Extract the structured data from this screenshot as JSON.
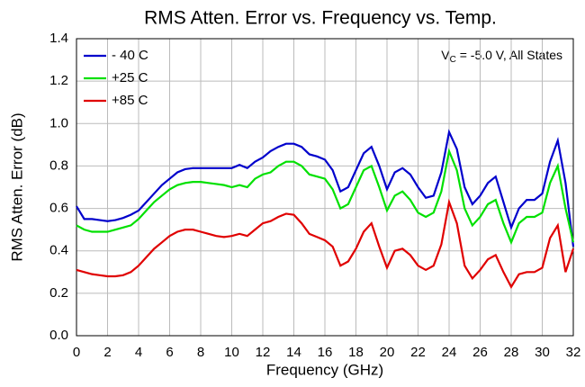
{
  "chart_data": {
    "type": "line",
    "title": "RMS Atten. Error vs. Frequency vs. Temp.",
    "xlabel": "Frequency (GHz)",
    "ylabel": "RMS Atten. Error (dB)",
    "annotation": {
      "text": "V",
      "subscript": "C",
      "rest": " = -5.0 V, All States"
    },
    "x": [
      0,
      0.5,
      1,
      1.5,
      2,
      2.5,
      3,
      3.5,
      4,
      4.5,
      5,
      5.5,
      6,
      6.5,
      7,
      7.5,
      8,
      8.5,
      9,
      9.5,
      10,
      10.5,
      11,
      11.5,
      12,
      12.5,
      13,
      13.5,
      14,
      14.5,
      15,
      15.5,
      16,
      16.5,
      17,
      17.5,
      18,
      18.5,
      19,
      19.5,
      20,
      20.5,
      21,
      21.5,
      22,
      22.5,
      23,
      23.5,
      24,
      24.5,
      25,
      25.5,
      26,
      26.5,
      27,
      27.5,
      28,
      28.5,
      29,
      29.5,
      30,
      30.5,
      31,
      31.5,
      32
    ],
    "series": [
      {
        "name": "- 40 C",
        "color": "#0000cc",
        "values": [
          0.61,
          0.55,
          0.55,
          0.545,
          0.54,
          0.545,
          0.555,
          0.57,
          0.59,
          0.63,
          0.67,
          0.71,
          0.74,
          0.77,
          0.785,
          0.79,
          0.79,
          0.79,
          0.79,
          0.79,
          0.79,
          0.805,
          0.79,
          0.82,
          0.84,
          0.87,
          0.89,
          0.905,
          0.905,
          0.89,
          0.855,
          0.845,
          0.83,
          0.78,
          0.68,
          0.7,
          0.78,
          0.86,
          0.89,
          0.8,
          0.69,
          0.77,
          0.79,
          0.76,
          0.7,
          0.65,
          0.66,
          0.77,
          0.96,
          0.88,
          0.7,
          0.62,
          0.66,
          0.72,
          0.75,
          0.63,
          0.51,
          0.6,
          0.64,
          0.64,
          0.67,
          0.82,
          0.92,
          0.72,
          0.42
        ]
      },
      {
        "name": "+25 C",
        "color": "#00e000",
        "values": [
          0.52,
          0.5,
          0.49,
          0.49,
          0.49,
          0.5,
          0.51,
          0.52,
          0.55,
          0.59,
          0.63,
          0.66,
          0.69,
          0.71,
          0.72,
          0.725,
          0.725,
          0.72,
          0.715,
          0.71,
          0.7,
          0.71,
          0.7,
          0.74,
          0.76,
          0.77,
          0.8,
          0.82,
          0.82,
          0.8,
          0.76,
          0.75,
          0.74,
          0.69,
          0.6,
          0.62,
          0.7,
          0.78,
          0.8,
          0.7,
          0.59,
          0.66,
          0.68,
          0.64,
          0.58,
          0.56,
          0.58,
          0.68,
          0.87,
          0.78,
          0.6,
          0.52,
          0.56,
          0.62,
          0.64,
          0.53,
          0.44,
          0.53,
          0.56,
          0.56,
          0.58,
          0.72,
          0.8,
          0.6,
          0.44
        ]
      },
      {
        "name": "+85 C",
        "color": "#e00000",
        "values": [
          0.31,
          0.3,
          0.29,
          0.285,
          0.28,
          0.28,
          0.285,
          0.3,
          0.33,
          0.37,
          0.41,
          0.44,
          0.47,
          0.49,
          0.5,
          0.5,
          0.49,
          0.48,
          0.47,
          0.465,
          0.47,
          0.48,
          0.47,
          0.5,
          0.53,
          0.54,
          0.56,
          0.575,
          0.57,
          0.53,
          0.48,
          0.465,
          0.45,
          0.42,
          0.33,
          0.35,
          0.41,
          0.49,
          0.53,
          0.42,
          0.32,
          0.4,
          0.41,
          0.38,
          0.33,
          0.31,
          0.33,
          0.43,
          0.63,
          0.53,
          0.33,
          0.27,
          0.31,
          0.36,
          0.38,
          0.3,
          0.23,
          0.29,
          0.3,
          0.3,
          0.32,
          0.46,
          0.52,
          0.3,
          0.41
        ]
      }
    ],
    "xlim": [
      0,
      32
    ],
    "xticks": [
      0,
      2,
      4,
      6,
      8,
      10,
      12,
      14,
      16,
      18,
      20,
      22,
      24,
      26,
      28,
      30,
      32
    ],
    "ylim": [
      0,
      1.4
    ],
    "yticks": [
      {
        "value": 0,
        "label": "0.0"
      },
      0.2,
      0.4,
      0.6,
      0.8,
      {
        "value": 1,
        "label": "1.0"
      },
      1.2,
      1.4
    ],
    "grid": true,
    "legend": "upper left"
  }
}
